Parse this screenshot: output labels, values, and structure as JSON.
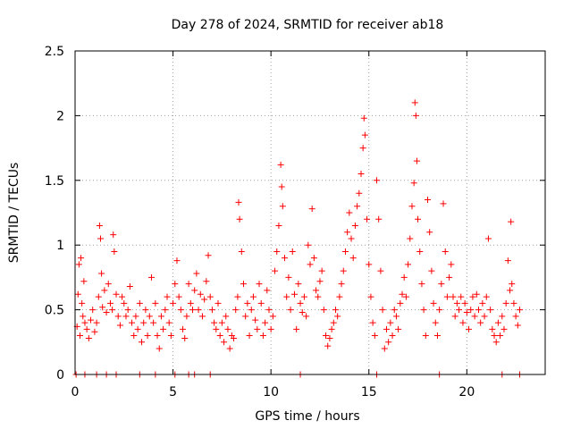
{
  "chart_data": {
    "type": "scatter",
    "title": "Day 278 of 2024, SRMTID for receiver ab18",
    "xlabel": "GPS time / hours",
    "ylabel": "SRMTID / TECUs",
    "xlim": [
      0,
      24
    ],
    "ylim": [
      0,
      2.5
    ],
    "xticks": [
      0,
      5,
      10,
      15,
      20
    ],
    "yticks": [
      0,
      0.5,
      1,
      1.5,
      2,
      2.5
    ],
    "xtick_labels": [
      "0",
      "5",
      "10",
      "15",
      "20"
    ],
    "ytick_labels": [
      "0",
      "0.5",
      "1",
      "1.5",
      "2",
      "2.5"
    ],
    "grid": true,
    "marker": "plus",
    "color": "#ff0000",
    "series": [
      {
        "name": "SRMTID",
        "points": [
          [
            0.1,
            0.37
          ],
          [
            0.15,
            0.62
          ],
          [
            0.2,
            0.85
          ],
          [
            0.25,
            0.3
          ],
          [
            0.3,
            0.9
          ],
          [
            0.35,
            0.55
          ],
          [
            0.4,
            0.45
          ],
          [
            0.45,
            0.72
          ],
          [
            0.5,
            0.4
          ],
          [
            0.6,
            0.35
          ],
          [
            0.7,
            0.28
          ],
          [
            0.8,
            0.42
          ],
          [
            0.9,
            0.5
          ],
          [
            1.0,
            0.33
          ],
          [
            1.1,
            0.4
          ],
          [
            1.2,
            0.6
          ],
          [
            1.25,
            1.15
          ],
          [
            1.3,
            1.05
          ],
          [
            1.35,
            0.78
          ],
          [
            1.4,
            0.52
          ],
          [
            1.5,
            0.65
          ],
          [
            1.6,
            0.48
          ],
          [
            1.7,
            0.7
          ],
          [
            1.8,
            0.55
          ],
          [
            1.9,
            0.5
          ],
          [
            1.95,
            1.08
          ],
          [
            2.0,
            0.95
          ],
          [
            2.1,
            0.62
          ],
          [
            2.2,
            0.45
          ],
          [
            2.3,
            0.38
          ],
          [
            2.4,
            0.6
          ],
          [
            2.5,
            0.55
          ],
          [
            2.6,
            0.45
          ],
          [
            2.7,
            0.5
          ],
          [
            2.8,
            0.68
          ],
          [
            2.9,
            0.4
          ],
          [
            3.0,
            0.3
          ],
          [
            3.1,
            0.45
          ],
          [
            3.2,
            0.35
          ],
          [
            3.3,
            0.55
          ],
          [
            3.4,
            0.25
          ],
          [
            3.5,
            0.4
          ],
          [
            3.6,
            0.5
          ],
          [
            3.7,
            0.3
          ],
          [
            3.8,
            0.45
          ],
          [
            3.9,
            0.75
          ],
          [
            4.0,
            0.4
          ],
          [
            4.1,
            0.55
          ],
          [
            4.2,
            0.3
          ],
          [
            4.3,
            0.2
          ],
          [
            4.4,
            0.45
          ],
          [
            4.5,
            0.35
          ],
          [
            4.6,
            0.5
          ],
          [
            4.7,
            0.6
          ],
          [
            4.8,
            0.4
          ],
          [
            4.9,
            0.3
          ],
          [
            5.0,
            0.55
          ],
          [
            5.1,
            0.7
          ],
          [
            5.2,
            0.88
          ],
          [
            5.3,
            0.6
          ],
          [
            5.4,
            0.5
          ],
          [
            5.5,
            0.35
          ],
          [
            5.6,
            0.28
          ],
          [
            5.7,
            0.45
          ],
          [
            5.8,
            0.7
          ],
          [
            5.9,
            0.55
          ],
          [
            6.0,
            0.5
          ],
          [
            6.1,
            0.65
          ],
          [
            6.2,
            0.78
          ],
          [
            6.3,
            0.5
          ],
          [
            6.4,
            0.62
          ],
          [
            6.5,
            0.45
          ],
          [
            6.6,
            0.58
          ],
          [
            6.7,
            0.72
          ],
          [
            6.8,
            0.92
          ],
          [
            6.9,
            0.6
          ],
          [
            7.0,
            0.5
          ],
          [
            7.1,
            0.4
          ],
          [
            7.2,
            0.35
          ],
          [
            7.3,
            0.55
          ],
          [
            7.4,
            0.3
          ],
          [
            7.5,
            0.4
          ],
          [
            7.6,
            0.25
          ],
          [
            7.7,
            0.45
          ],
          [
            7.8,
            0.35
          ],
          [
            7.9,
            0.2
          ],
          [
            8.0,
            0.3
          ],
          [
            8.1,
            0.28
          ],
          [
            8.2,
            0.5
          ],
          [
            8.3,
            0.6
          ],
          [
            8.35,
            1.33
          ],
          [
            8.4,
            1.2
          ],
          [
            8.5,
            0.95
          ],
          [
            8.6,
            0.7
          ],
          [
            8.7,
            0.45
          ],
          [
            8.8,
            0.55
          ],
          [
            8.9,
            0.3
          ],
          [
            9.0,
            0.5
          ],
          [
            9.1,
            0.6
          ],
          [
            9.2,
            0.42
          ],
          [
            9.3,
            0.35
          ],
          [
            9.4,
            0.7
          ],
          [
            9.5,
            0.55
          ],
          [
            9.6,
            0.3
          ],
          [
            9.7,
            0.4
          ],
          [
            9.8,
            0.65
          ],
          [
            9.9,
            0.5
          ],
          [
            10.0,
            0.35
          ],
          [
            10.1,
            0.45
          ],
          [
            10.2,
            0.8
          ],
          [
            10.3,
            0.95
          ],
          [
            10.4,
            1.15
          ],
          [
            10.5,
            1.62
          ],
          [
            10.55,
            1.45
          ],
          [
            10.6,
            1.3
          ],
          [
            10.7,
            0.9
          ],
          [
            10.8,
            0.6
          ],
          [
            10.9,
            0.75
          ],
          [
            11.0,
            0.5
          ],
          [
            11.1,
            0.95
          ],
          [
            11.2,
            0.62
          ],
          [
            11.3,
            0.35
          ],
          [
            11.4,
            0.7
          ],
          [
            11.5,
            0.55
          ],
          [
            11.6,
            0.48
          ],
          [
            11.7,
            0.6
          ],
          [
            11.8,
            0.45
          ],
          [
            11.9,
            1.0
          ],
          [
            12.0,
            0.85
          ],
          [
            12.1,
            1.28
          ],
          [
            12.2,
            0.9
          ],
          [
            12.3,
            0.65
          ],
          [
            12.4,
            0.6
          ],
          [
            12.5,
            0.72
          ],
          [
            12.6,
            0.8
          ],
          [
            12.7,
            0.5
          ],
          [
            12.8,
            0.3
          ],
          [
            12.9,
            0.22
          ],
          [
            13.0,
            0.28
          ],
          [
            13.1,
            0.35
          ],
          [
            13.2,
            0.4
          ],
          [
            13.3,
            0.5
          ],
          [
            13.4,
            0.45
          ],
          [
            13.5,
            0.6
          ],
          [
            13.6,
            0.7
          ],
          [
            13.7,
            0.8
          ],
          [
            13.8,
            0.95
          ],
          [
            13.9,
            1.1
          ],
          [
            14.0,
            1.25
          ],
          [
            14.1,
            1.05
          ],
          [
            14.2,
            0.9
          ],
          [
            14.3,
            1.15
          ],
          [
            14.4,
            1.3
          ],
          [
            14.5,
            1.4
          ],
          [
            14.6,
            1.55
          ],
          [
            14.7,
            1.75
          ],
          [
            14.75,
            1.98
          ],
          [
            14.8,
            1.85
          ],
          [
            14.9,
            1.2
          ],
          [
            15.0,
            0.85
          ],
          [
            15.1,
            0.6
          ],
          [
            15.2,
            0.4
          ],
          [
            15.3,
            0.3
          ],
          [
            15.4,
            1.5
          ],
          [
            15.5,
            1.2
          ],
          [
            15.6,
            0.8
          ],
          [
            15.7,
            0.5
          ],
          [
            15.8,
            0.2
          ],
          [
            15.9,
            0.35
          ],
          [
            16.0,
            0.25
          ],
          [
            16.1,
            0.4
          ],
          [
            16.2,
            0.3
          ],
          [
            16.3,
            0.5
          ],
          [
            16.4,
            0.45
          ],
          [
            16.5,
            0.35
          ],
          [
            16.6,
            0.55
          ],
          [
            16.7,
            0.62
          ],
          [
            16.8,
            0.75
          ],
          [
            16.9,
            0.6
          ],
          [
            17.0,
            0.85
          ],
          [
            17.1,
            1.05
          ],
          [
            17.2,
            1.3
          ],
          [
            17.3,
            1.48
          ],
          [
            17.35,
            2.1
          ],
          [
            17.4,
            2.0
          ],
          [
            17.45,
            1.65
          ],
          [
            17.5,
            1.2
          ],
          [
            17.6,
            0.95
          ],
          [
            17.7,
            0.7
          ],
          [
            17.8,
            0.5
          ],
          [
            17.9,
            0.3
          ],
          [
            18.0,
            1.35
          ],
          [
            18.1,
            1.1
          ],
          [
            18.2,
            0.8
          ],
          [
            18.3,
            0.55
          ],
          [
            18.4,
            0.4
          ],
          [
            18.5,
            0.3
          ],
          [
            18.6,
            0.5
          ],
          [
            18.7,
            0.7
          ],
          [
            18.8,
            1.32
          ],
          [
            18.9,
            0.95
          ],
          [
            19.0,
            0.6
          ],
          [
            19.1,
            0.75
          ],
          [
            19.2,
            0.85
          ],
          [
            19.3,
            0.6
          ],
          [
            19.4,
            0.45
          ],
          [
            19.5,
            0.55
          ],
          [
            19.6,
            0.5
          ],
          [
            19.7,
            0.6
          ],
          [
            19.8,
            0.4
          ],
          [
            19.9,
            0.55
          ],
          [
            20.0,
            0.48
          ],
          [
            20.1,
            0.35
          ],
          [
            20.2,
            0.5
          ],
          [
            20.3,
            0.6
          ],
          [
            20.4,
            0.45
          ],
          [
            20.5,
            0.62
          ],
          [
            20.6,
            0.5
          ],
          [
            20.7,
            0.4
          ],
          [
            20.8,
            0.55
          ],
          [
            20.9,
            0.45
          ],
          [
            21.0,
            0.6
          ],
          [
            21.1,
            1.05
          ],
          [
            21.2,
            0.5
          ],
          [
            21.3,
            0.35
          ],
          [
            21.4,
            0.3
          ],
          [
            21.5,
            0.25
          ],
          [
            21.6,
            0.4
          ],
          [
            21.7,
            0.3
          ],
          [
            21.8,
            0.45
          ],
          [
            21.9,
            0.35
          ],
          [
            22.0,
            0.55
          ],
          [
            22.1,
            0.88
          ],
          [
            22.2,
            0.65
          ],
          [
            22.25,
            1.18
          ],
          [
            22.3,
            0.7
          ],
          [
            22.4,
            0.55
          ],
          [
            22.5,
            0.45
          ],
          [
            22.6,
            0.38
          ],
          [
            22.7,
            0.5
          ],
          [
            0.05,
            0.0
          ],
          [
            0.5,
            0.0
          ],
          [
            1.1,
            0.0
          ],
          [
            1.6,
            0.0
          ],
          [
            2.1,
            0.0
          ],
          [
            3.3,
            0.0
          ],
          [
            4.1,
            0.0
          ],
          [
            5.1,
            0.0
          ],
          [
            5.8,
            0.0
          ],
          [
            6.1,
            0.0
          ],
          [
            6.9,
            0.0
          ],
          [
            11.5,
            0.0
          ],
          [
            15.4,
            0.0
          ],
          [
            18.6,
            0.0
          ],
          [
            21.8,
            0.0
          ],
          [
            22.7,
            0.0
          ]
        ]
      }
    ]
  }
}
